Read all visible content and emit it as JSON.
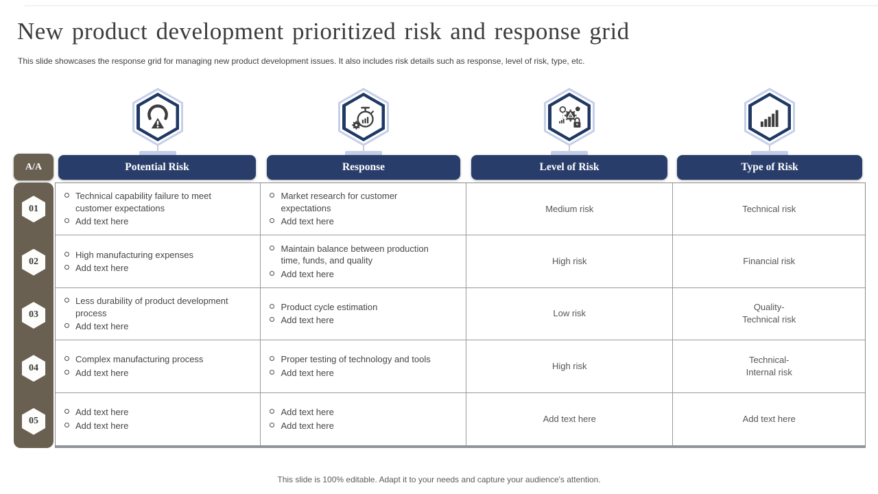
{
  "slide": {
    "title": "New product development prioritized risk and response grid",
    "subtitle": "This slide showcases the response grid for managing new product development issues. It also includes risk details such as response, level of risk, type, etc.",
    "footer": "This slide is 100% editable. Adapt it to your needs and capture your audience's attention."
  },
  "colors": {
    "header_navy": "#293d6b",
    "hexagon_border_navy": "#1f3864",
    "hexagon_ring_lavender": "#c6cfe9",
    "row_strip_brown": "#6a6051",
    "table_border_gray": "#8a8a8a",
    "icon_dark": "#3d3d3d",
    "body_text": "#454545"
  },
  "icons": [
    "risk-gauge-icon",
    "stopwatch-gear-icon",
    "secure-process-icon",
    "growth-bars-icon"
  ],
  "table": {
    "corner_label": "A/A",
    "columns": [
      "Potential Risk",
      "Response",
      "Level of Risk",
      "Type of Risk"
    ],
    "rows": [
      {
        "num": "01",
        "potential_risk": [
          "Technical capability failure to meet customer expectations",
          "Add text here"
        ],
        "response": [
          "Market research for customer expectations",
          "Add text here"
        ],
        "level": "Medium risk",
        "type": "Technical risk"
      },
      {
        "num": "02",
        "potential_risk": [
          "High manufacturing expenses",
          "Add text here"
        ],
        "response": [
          "Maintain balance between production time, funds, and quality",
          "Add text here"
        ],
        "level": "High risk",
        "type": "Financial risk"
      },
      {
        "num": "03",
        "potential_risk": [
          "Less durability of product development process",
          "Add text here"
        ],
        "response": [
          "Product cycle estimation",
          "Add text here"
        ],
        "level": "Low risk",
        "type": "Quality-\nTechnical risk"
      },
      {
        "num": "04",
        "potential_risk": [
          "Complex manufacturing process",
          "Add text here"
        ],
        "response": [
          "Proper testing of  technology and tools",
          "Add text here"
        ],
        "level": "High risk",
        "type": "Technical-\nInternal risk"
      },
      {
        "num": "05",
        "potential_risk": [
          "Add text here",
          "Add text here"
        ],
        "response": [
          "Add text here",
          "Add text here"
        ],
        "level": "Add text here",
        "type": "Add text here"
      }
    ]
  }
}
